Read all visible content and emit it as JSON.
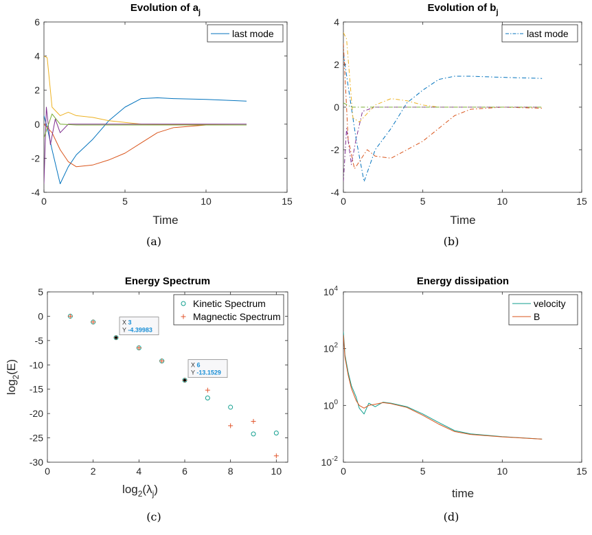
{
  "chart_data": [
    {
      "type": "line",
      "title": "Evolution of a",
      "title_subscript": "j",
      "xlabel": "Time",
      "ylabel": "",
      "caption": "(a)",
      "xlim": [
        0,
        15
      ],
      "ylim": [
        -4,
        6
      ],
      "xticks": [
        "0",
        "5",
        "10",
        "15"
      ],
      "yticks": [
        "-4",
        "-2",
        "0",
        "2",
        "4",
        "6"
      ],
      "legend": {
        "entries": [
          "last mode"
        ],
        "placement": "top-right"
      },
      "series": [
        {
          "name": "last mode",
          "color": "#0072bd",
          "style": "solid",
          "points": [
            [
              0,
              0.5
            ],
            [
              0.2,
              -0.2
            ],
            [
              0.5,
              -1.5
            ],
            [
              1.0,
              -3.5
            ],
            [
              1.5,
              -2.5
            ],
            [
              2,
              -1.8
            ],
            [
              3,
              -0.9
            ],
            [
              4,
              0.2
            ],
            [
              5,
              1.0
            ],
            [
              6,
              1.5
            ],
            [
              7,
              1.55
            ],
            [
              8,
              1.5
            ],
            [
              10,
              1.45
            ],
            [
              12.5,
              1.35
            ]
          ]
        },
        {
          "color": "#d95319",
          "style": "solid",
          "points": [
            [
              0,
              0
            ],
            [
              0.5,
              -0.5
            ],
            [
              1,
              -1.5
            ],
            [
              1.5,
              -2.2
            ],
            [
              2,
              -2.5
            ],
            [
              3,
              -2.4
            ],
            [
              4,
              -2.1
            ],
            [
              5,
              -1.7
            ],
            [
              6,
              -1.1
            ],
            [
              7,
              -0.5
            ],
            [
              8,
              -0.2
            ],
            [
              10,
              -0.05
            ],
            [
              12.5,
              -0.05
            ]
          ]
        },
        {
          "color": "#edb120",
          "style": "solid",
          "points": [
            [
              0,
              4
            ],
            [
              0.2,
              3.9
            ],
            [
              0.5,
              1.0
            ],
            [
              1,
              0.5
            ],
            [
              1.5,
              0.7
            ],
            [
              2,
              0.5
            ],
            [
              3,
              0.4
            ],
            [
              4,
              0.2
            ],
            [
              6,
              0
            ],
            [
              12.5,
              -0.05
            ]
          ]
        },
        {
          "color": "#7e2f8e",
          "style": "solid",
          "points": [
            [
              0,
              -3.5
            ],
            [
              0.15,
              1.0
            ],
            [
              0.4,
              -1.2
            ],
            [
              0.7,
              0.3
            ],
            [
              1,
              -0.5
            ],
            [
              1.5,
              0
            ],
            [
              3,
              0
            ],
            [
              12.5,
              0
            ]
          ]
        },
        {
          "color": "#77ac30",
          "style": "solid",
          "points": [
            [
              0,
              -0.8
            ],
            [
              0.5,
              0.6
            ],
            [
              1,
              0
            ],
            [
              2,
              -0.05
            ],
            [
              5,
              -0.05
            ],
            [
              12.5,
              -0.05
            ]
          ]
        }
      ]
    },
    {
      "type": "line",
      "title": "Evolution of b",
      "title_subscript": "j",
      "xlabel": "Time",
      "ylabel": "",
      "caption": "(b)",
      "xlim": [
        0,
        15
      ],
      "ylim": [
        -4,
        4
      ],
      "xticks": [
        "0",
        "5",
        "10",
        "15"
      ],
      "yticks": [
        "-4",
        "-2",
        "0",
        "2",
        "4"
      ],
      "legend": {
        "entries": [
          "last mode"
        ],
        "placement": "top-right"
      },
      "series": [
        {
          "name": "last mode",
          "color": "#0072bd",
          "style": "dashdot",
          "points": [
            [
              0,
              2.5
            ],
            [
              0.3,
              1.0
            ],
            [
              0.8,
              -1.5
            ],
            [
              1.3,
              -3.5
            ],
            [
              2,
              -2.0
            ],
            [
              3,
              -1.0
            ],
            [
              4,
              0.2
            ],
            [
              5,
              0.8
            ],
            [
              6,
              1.3
            ],
            [
              7,
              1.45
            ],
            [
              8,
              1.45
            ],
            [
              10,
              1.4
            ],
            [
              12.5,
              1.35
            ]
          ]
        },
        {
          "color": "#d95319",
          "style": "dashdot",
          "points": [
            [
              0,
              3.0
            ],
            [
              0.3,
              -1.5
            ],
            [
              0.7,
              -2.9
            ],
            [
              1.5,
              -2.0
            ],
            [
              2,
              -2.3
            ],
            [
              3,
              -2.4
            ],
            [
              4,
              -2.0
            ],
            [
              5,
              -1.6
            ],
            [
              6,
              -1.0
            ],
            [
              7,
              -0.4
            ],
            [
              8,
              -0.1
            ],
            [
              10,
              0
            ],
            [
              12.5,
              -0.05
            ]
          ]
        },
        {
          "color": "#edb120",
          "style": "dashdot",
          "points": [
            [
              0,
              3.5
            ],
            [
              0.2,
              3.2
            ],
            [
              0.6,
              -0.5
            ],
            [
              1,
              -0.7
            ],
            [
              2,
              0.1
            ],
            [
              3,
              0.4
            ],
            [
              4,
              0.3
            ],
            [
              5,
              0.1
            ],
            [
              6,
              0
            ],
            [
              12.5,
              0
            ]
          ]
        },
        {
          "color": "#7e2f8e",
          "style": "dashdot",
          "points": [
            [
              0,
              -3.5
            ],
            [
              0.2,
              -1.0
            ],
            [
              0.5,
              -2.7
            ],
            [
              0.8,
              -1.5
            ],
            [
              1.2,
              -0.2
            ],
            [
              2,
              0
            ],
            [
              12.5,
              0
            ]
          ]
        },
        {
          "color": "#77ac30",
          "style": "dashdot",
          "points": [
            [
              0,
              0.2
            ],
            [
              0.5,
              0
            ],
            [
              12.5,
              0
            ]
          ]
        }
      ]
    },
    {
      "type": "scatter",
      "title": "Energy Spectrum",
      "xlabel": "log",
      "xlabel_sub": "2",
      "xlabel_rest": "(λ",
      "xlabel_rest_sub": "j",
      "xlabel_end": ")",
      "ylabel": "log",
      "ylabel_sub": "2",
      "ylabel_rest": "(E)",
      "caption": "(c)",
      "xlim": [
        0,
        10.5
      ],
      "ylim": [
        -30,
        5
      ],
      "xticks": [
        "0",
        "2",
        "4",
        "6",
        "8",
        "10"
      ],
      "yticks": [
        "-30",
        "-25",
        "-20",
        "-15",
        "-10",
        "-5",
        "0",
        "5"
      ],
      "legend": {
        "entries": [
          "Kinetic Spectrum",
          "Magnectic Spectrum"
        ],
        "placement": "top-right"
      },
      "series": [
        {
          "name": "Kinetic Spectrum",
          "color": "#0f9e8e",
          "marker": "circle",
          "x": [
            1,
            2,
            3,
            4,
            5,
            6,
            7,
            8,
            9,
            10
          ],
          "y": [
            0,
            -1.2,
            -4.39983,
            -6.5,
            -9.2,
            -13.1529,
            -16.8,
            -18.7,
            -24.2,
            -24.0
          ]
        },
        {
          "name": "Magnectic Spectrum",
          "color": "#e2562c",
          "marker": "plus",
          "x": [
            1,
            2,
            3,
            4,
            5,
            6,
            7,
            8,
            9,
            10
          ],
          "y": [
            0,
            -1.2,
            -4.39983,
            -6.5,
            -9.2,
            -13.1529,
            -15.2,
            -22.5,
            -21.6,
            -28.7
          ]
        }
      ],
      "datatips": [
        {
          "x_label": "X",
          "x_value": "3",
          "y_label": "Y",
          "y_value": "-4.39983",
          "x": 3,
          "y": -4.39983
        },
        {
          "x_label": "X",
          "x_value": "6",
          "y_label": "Y",
          "y_value": "-13.1529",
          "x": 6,
          "y": -13.1529
        }
      ]
    },
    {
      "type": "line",
      "title": "Energy dissipation",
      "xlabel": "time",
      "ylabel": "",
      "caption": "(d)",
      "xlim": [
        0,
        15
      ],
      "ylim": [
        0.01,
        10000
      ],
      "yscale": "log",
      "xticks": [
        "0",
        "5",
        "10",
        "15"
      ],
      "yticks": [
        {
          "base": "10",
          "exp": "-2"
        },
        {
          "base": "10",
          "exp": "0"
        },
        {
          "base": "10",
          "exp": "2"
        },
        {
          "base": "10",
          "exp": "4"
        }
      ],
      "legend": {
        "entries": [
          "velocity",
          "B"
        ],
        "placement": "top-right"
      },
      "series": [
        {
          "name": "velocity",
          "color": "#0f9e8e",
          "points": [
            [
              0,
              400
            ],
            [
              0.1,
              60
            ],
            [
              0.3,
              15
            ],
            [
              0.5,
              5
            ],
            [
              0.8,
              2
            ],
            [
              1.0,
              0.8
            ],
            [
              1.3,
              0.5
            ],
            [
              1.6,
              1.2
            ],
            [
              2,
              0.9
            ],
            [
              2.5,
              1.3
            ],
            [
              3,
              1.2
            ],
            [
              4,
              0.9
            ],
            [
              5,
              0.5
            ],
            [
              6,
              0.25
            ],
            [
              7,
              0.13
            ],
            [
              8,
              0.1
            ],
            [
              10,
              0.08
            ],
            [
              12.5,
              0.065
            ]
          ]
        },
        {
          "name": "B",
          "color": "#d95319",
          "points": [
            [
              0,
              300
            ],
            [
              0.1,
              50
            ],
            [
              0.3,
              12
            ],
            [
              0.5,
              4
            ],
            [
              0.8,
              1.5
            ],
            [
              1.0,
              1.0
            ],
            [
              1.3,
              0.8
            ],
            [
              1.6,
              1.0
            ],
            [
              2,
              1.1
            ],
            [
              2.5,
              1.25
            ],
            [
              3,
              1.15
            ],
            [
              4,
              0.85
            ],
            [
              5,
              0.45
            ],
            [
              6,
              0.22
            ],
            [
              7,
              0.12
            ],
            [
              8,
              0.095
            ],
            [
              10,
              0.078
            ],
            [
              12.5,
              0.065
            ]
          ]
        }
      ]
    }
  ]
}
